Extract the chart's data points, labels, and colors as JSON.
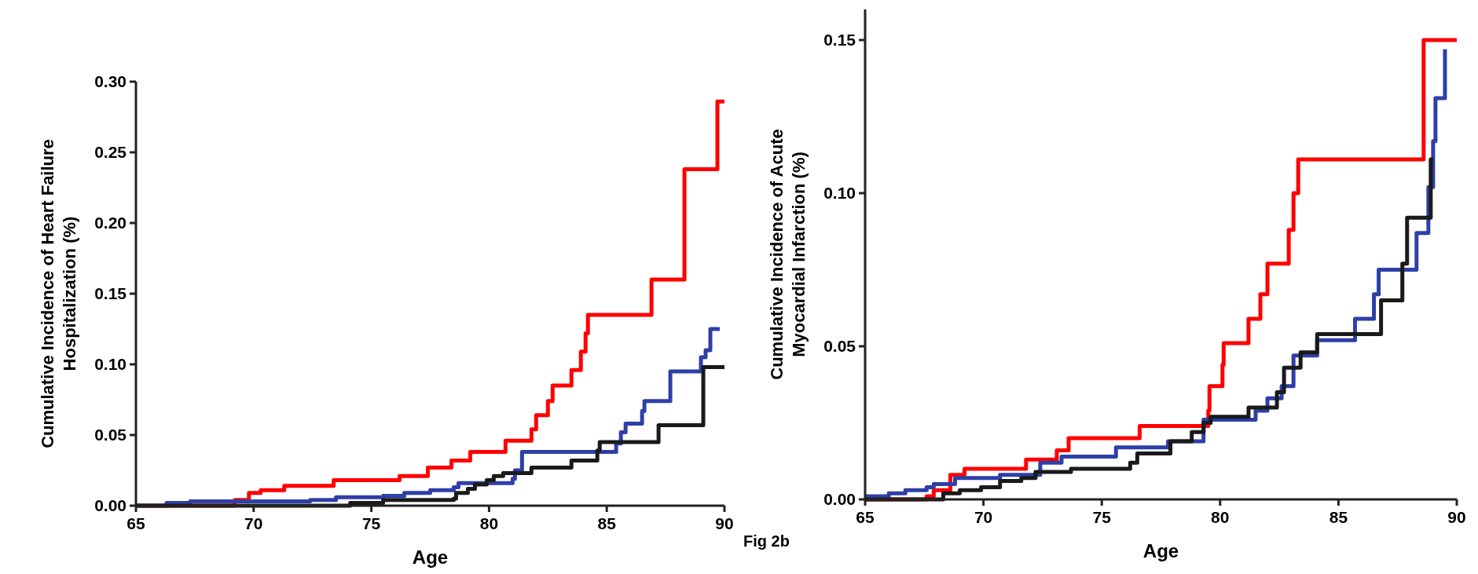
{
  "chart_data": [
    {
      "type": "step",
      "xlabel": "Age",
      "ylabel": "Cumulative Incidence of Heart Failure\nHospitalization (%)",
      "xlim": [
        65,
        90
      ],
      "ylim": [
        0,
        0.3
      ],
      "xticks": [
        65,
        70,
        75,
        80,
        85,
        90
      ],
      "yticks": [
        {
          "value": 0,
          "label": "0.00"
        },
        {
          "value": 0.05,
          "label": "0.05"
        },
        {
          "value": 0.1,
          "label": "0.10"
        },
        {
          "value": 0.15,
          "label": "0.15"
        },
        {
          "value": 0.2,
          "label": "0.20"
        },
        {
          "value": 0.25,
          "label": "0.25"
        },
        {
          "value": 0.3,
          "label": "0.30"
        }
      ],
      "grid": false,
      "series": [
        {
          "color": "#ff0000",
          "x": [
            65,
            69.2,
            69.8,
            70.3,
            71.3,
            73.4,
            76.2,
            77.4,
            78.4,
            79.2,
            80.7,
            81.8,
            82.0,
            82.5,
            82.7,
            83.5,
            83.9,
            84.1,
            84.2,
            86.9,
            88.3,
            89.7,
            90
          ],
          "values": [
            0,
            0.004,
            0.009,
            0.011,
            0.014,
            0.018,
            0.021,
            0.027,
            0.032,
            0.038,
            0.046,
            0.054,
            0.064,
            0.074,
            0.085,
            0.096,
            0.109,
            0.122,
            0.135,
            0.16,
            0.238,
            0.286,
            0.286
          ]
        },
        {
          "color": "#2e3fa8",
          "x": [
            65,
            66.3,
            67.3,
            72.4,
            73.5,
            75.5,
            76.4,
            77.5,
            78.5,
            78.7,
            81.0,
            81.1,
            81.4,
            85.4,
            85.6,
            85.8,
            86.5,
            86.6,
            87.7,
            89.0,
            89.2,
            89.4,
            89.8
          ],
          "values": [
            0,
            0.002,
            0.003,
            0.004,
            0.006,
            0.007,
            0.009,
            0.011,
            0.013,
            0.016,
            0.019,
            0.025,
            0.038,
            0.044,
            0.052,
            0.058,
            0.067,
            0.074,
            0.095,
            0.105,
            0.11,
            0.125,
            0.125
          ]
        },
        {
          "color": "#1a1a1a",
          "x": [
            65,
            74.1,
            75.5,
            78.5,
            78.6,
            79.1,
            79.4,
            79.9,
            80.2,
            80.6,
            81.8,
            83.5,
            84.6,
            84.7,
            87.2,
            89.1,
            90
          ],
          "values": [
            0,
            0.002,
            0.004,
            0.005,
            0.009,
            0.012,
            0.015,
            0.018,
            0.021,
            0.023,
            0.027,
            0.032,
            0.039,
            0.045,
            0.057,
            0.098,
            0.098
          ]
        }
      ]
    },
    {
      "type": "step",
      "xlabel": "Age",
      "ylabel": "Cumulative Incidence of Acute\nMyocardial  Infarction (%)",
      "annotations": [
        "Fig 2b"
      ],
      "xlim": [
        65,
        90
      ],
      "ylim": [
        0,
        0.16
      ],
      "xticks": [
        65,
        70,
        75,
        80,
        85,
        90
      ],
      "yticks": [
        {
          "value": 0,
          "label": "0.00"
        },
        {
          "value": 0.05,
          "label": "0.05"
        },
        {
          "value": 0.1,
          "label": "0.10"
        },
        {
          "value": 0.15,
          "label": "0.15"
        }
      ],
      "grid": false,
      "series": [
        {
          "color": "#ff0000",
          "x": [
            65,
            67.6,
            67.9,
            68.6,
            69.2,
            71.8,
            73.1,
            73.6,
            76.6,
            79.5,
            79.55,
            80.1,
            80.15,
            81.2,
            81.7,
            82.0,
            82.9,
            83.1,
            83.3,
            88.6,
            90
          ],
          "values": [
            0,
            0.001,
            0.003,
            0.008,
            0.01,
            0.013,
            0.016,
            0.02,
            0.024,
            0.029,
            0.037,
            0.044,
            0.051,
            0.059,
            0.067,
            0.077,
            0.088,
            0.1,
            0.111,
            0.15,
            0.15
          ]
        },
        {
          "color": "#2e3fa8",
          "x": [
            65,
            66.0,
            66.7,
            67.6,
            67.9,
            68.8,
            70.7,
            72.4,
            73.3,
            75.6,
            77.8,
            79.3,
            81.5,
            82.0,
            82.6,
            83.1,
            84.1,
            85.7,
            86.5,
            86.7,
            88.3,
            88.8,
            89.0,
            89.1,
            89.5
          ],
          "values": [
            0.001,
            0.002,
            0.003,
            0.004,
            0.005,
            0.007,
            0.008,
            0.012,
            0.014,
            0.017,
            0.019,
            0.026,
            0.029,
            0.033,
            0.037,
            0.047,
            0.052,
            0.059,
            0.067,
            0.075,
            0.087,
            0.102,
            0.117,
            0.131,
            0.147
          ]
        },
        {
          "color": "#1a1a1a",
          "x": [
            65,
            68.3,
            69.0,
            69.9,
            70.7,
            71.6,
            72.2,
            73.7,
            76.2,
            76.5,
            77.9,
            78.8,
            79.3,
            79.6,
            81.2,
            82.4,
            82.7,
            83.4,
            84.1,
            86.8,
            87.7,
            87.9,
            88.9,
            89.0
          ],
          "values": [
            0,
            0.002,
            0.003,
            0.004,
            0.006,
            0.007,
            0.009,
            0.01,
            0.012,
            0.015,
            0.019,
            0.022,
            0.025,
            0.027,
            0.03,
            0.035,
            0.043,
            0.048,
            0.054,
            0.065,
            0.077,
            0.092,
            0.111,
            0.111
          ]
        }
      ]
    }
  ]
}
